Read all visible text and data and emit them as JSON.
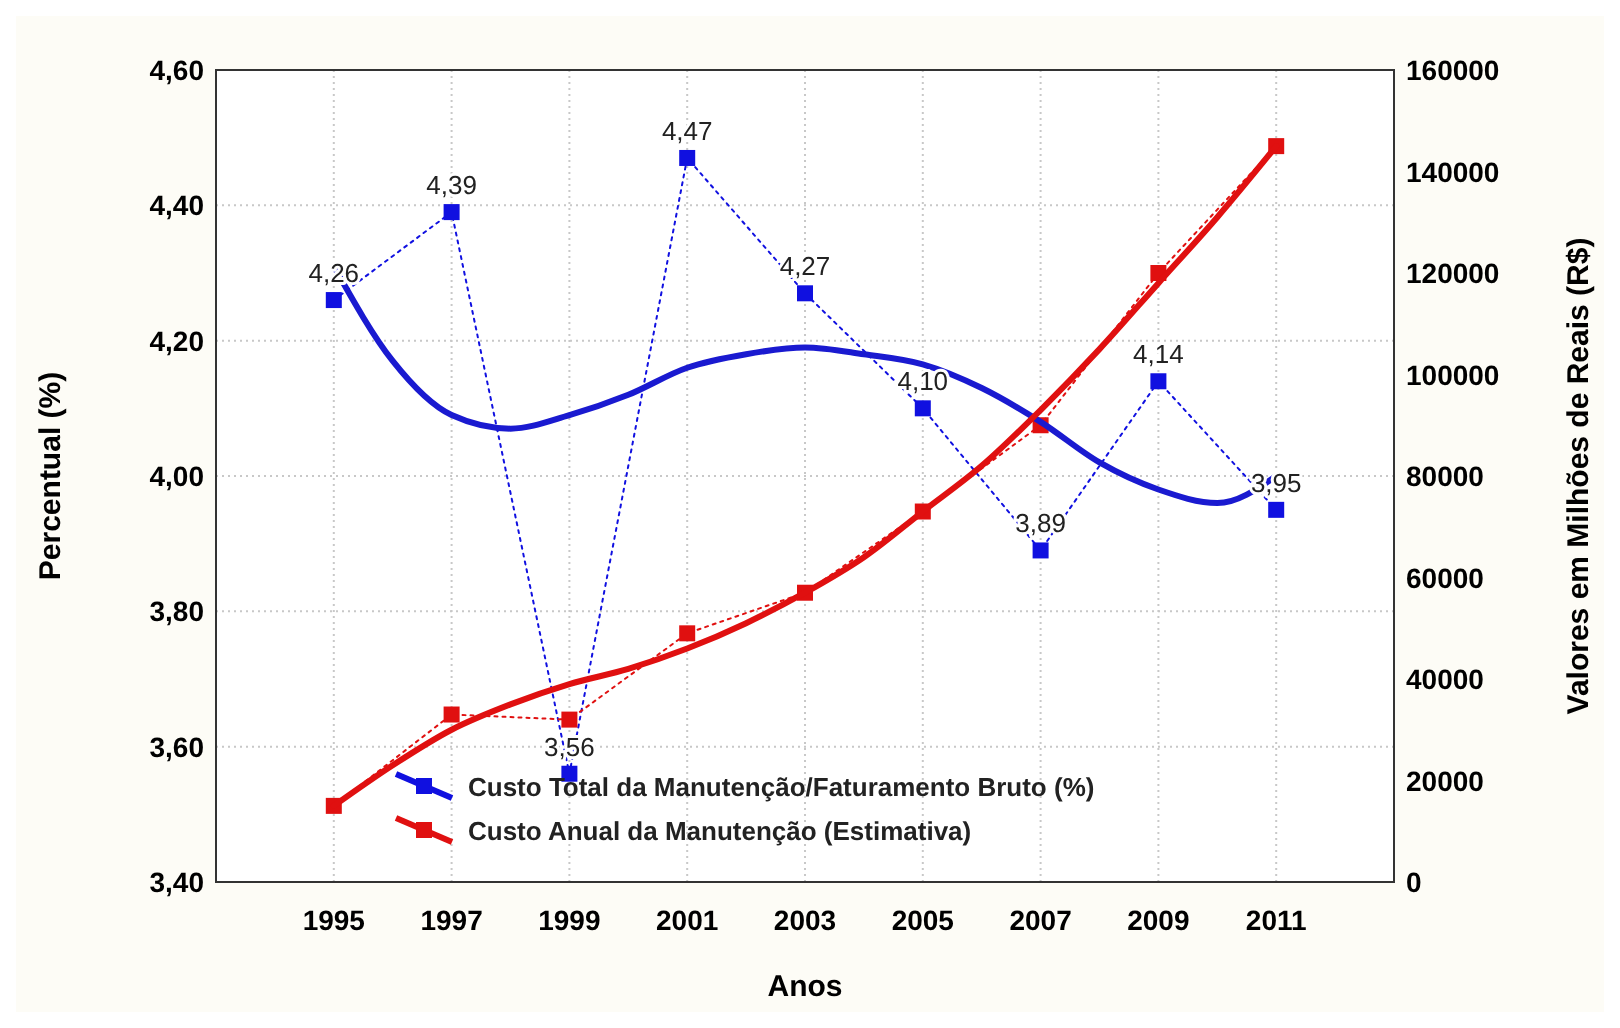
{
  "chart_data": {
    "type": "line",
    "xlabel": "Anos",
    "ylabel": "Percentual (%)",
    "y2label": "Valores em Milhões de Reais (R$)",
    "x": [
      1995,
      1997,
      1999,
      2001,
      2003,
      2005,
      2007,
      2009,
      2011
    ],
    "xlim": [
      1993,
      2013
    ],
    "xticks": [
      1995,
      1997,
      1999,
      2001,
      2003,
      2005,
      2007,
      2009,
      2011
    ],
    "ylim": [
      3.4,
      4.6
    ],
    "yticks": [
      {
        "value": 3.4,
        "label": "3,40"
      },
      {
        "value": 3.6,
        "label": "3,60"
      },
      {
        "value": 3.8,
        "label": "3,80"
      },
      {
        "value": 4.0,
        "label": "4,00"
      },
      {
        "value": 4.2,
        "label": "4,20"
      },
      {
        "value": 4.4,
        "label": "4,40"
      },
      {
        "value": 4.6,
        "label": "4,60"
      }
    ],
    "y2lim": [
      0,
      160000
    ],
    "y2ticks": [
      0,
      20000,
      40000,
      60000,
      80000,
      100000,
      120000,
      140000,
      160000
    ],
    "grid": true,
    "legend": "bottom",
    "series": [
      {
        "name": "Custo Total da Manutenção/Faturamento Bruto (%)",
        "color": "#1010e0",
        "marker": "square",
        "line_style": "dotted",
        "values": [
          4.26,
          4.39,
          3.56,
          4.47,
          4.27,
          4.1,
          3.89,
          4.14,
          3.95
        ],
        "value_labels": [
          "4,26",
          "4,39",
          "3,56",
          "4,47",
          "4,27",
          "4,10",
          "3,89",
          "4,14",
          "3,95"
        ]
      },
      {
        "name": "Custo Anual da Manutenção (Estimativa)",
        "color": "#e01010",
        "marker": "square",
        "line_style": "dotted",
        "axis": "y2",
        "values": [
          15000,
          33000,
          32000,
          49000,
          57000,
          73000,
          90000,
          120000,
          145000
        ]
      },
      {
        "color": "#1a1ad0",
        "marker": "none",
        "line_style": "solid",
        "x": [
          1995,
          1996,
          1997,
          1998,
          1999,
          2000,
          2001,
          2002,
          2003,
          2004,
          2005,
          2006,
          2007,
          2008,
          2009,
          2010,
          2011
        ],
        "values": [
          4.31,
          4.17,
          4.09,
          4.07,
          4.09,
          4.12,
          4.16,
          4.18,
          4.19,
          4.18,
          4.165,
          4.13,
          4.08,
          4.02,
          3.98,
          3.96,
          4.0
        ]
      },
      {
        "color": "#e01010",
        "marker": "none",
        "line_style": "solid",
        "axis": "y2",
        "x": [
          1995,
          1996,
          1997,
          1998,
          1999,
          2000,
          2001,
          2002,
          2003,
          2004,
          2005,
          2006,
          2007,
          2008,
          2009,
          2010,
          2011
        ],
        "values": [
          15000,
          23000,
          30000,
          35000,
          39000,
          42000,
          46000,
          51000,
          57000,
          64000,
          73000,
          82000,
          93000,
          105000,
          118000,
          131000,
          145000
        ]
      }
    ]
  }
}
